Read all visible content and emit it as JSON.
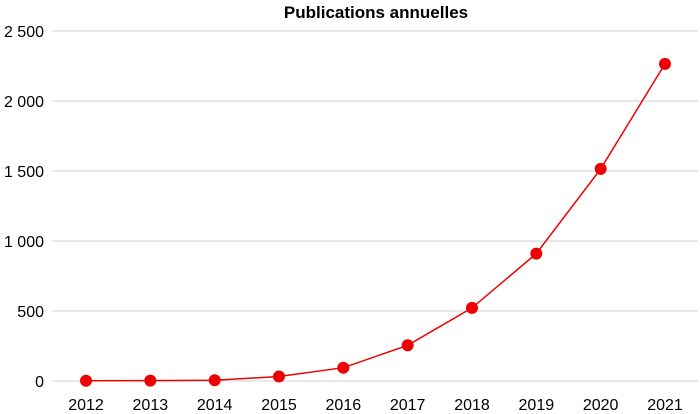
{
  "chart_data": {
    "type": "line",
    "title": "Publications annuelles",
    "xlabel": "",
    "ylabel": "",
    "categories": [
      "2012",
      "2013",
      "2014",
      "2015",
      "2016",
      "2017",
      "2018",
      "2019",
      "2020",
      "2021"
    ],
    "series": [
      {
        "values": [
          2,
          3,
          5,
          32,
          95,
          255,
          522,
          910,
          1515,
          2265
        ]
      }
    ],
    "ylim": [
      0,
      2500
    ],
    "yticks": [
      0,
      500,
      1000,
      1500,
      2000,
      2500
    ],
    "ytick_labels": [
      "0",
      "500",
      "1 000",
      "1 500",
      "2 000",
      "2 500"
    ],
    "grid": true,
    "legend": "none",
    "color": "#ee0000"
  }
}
